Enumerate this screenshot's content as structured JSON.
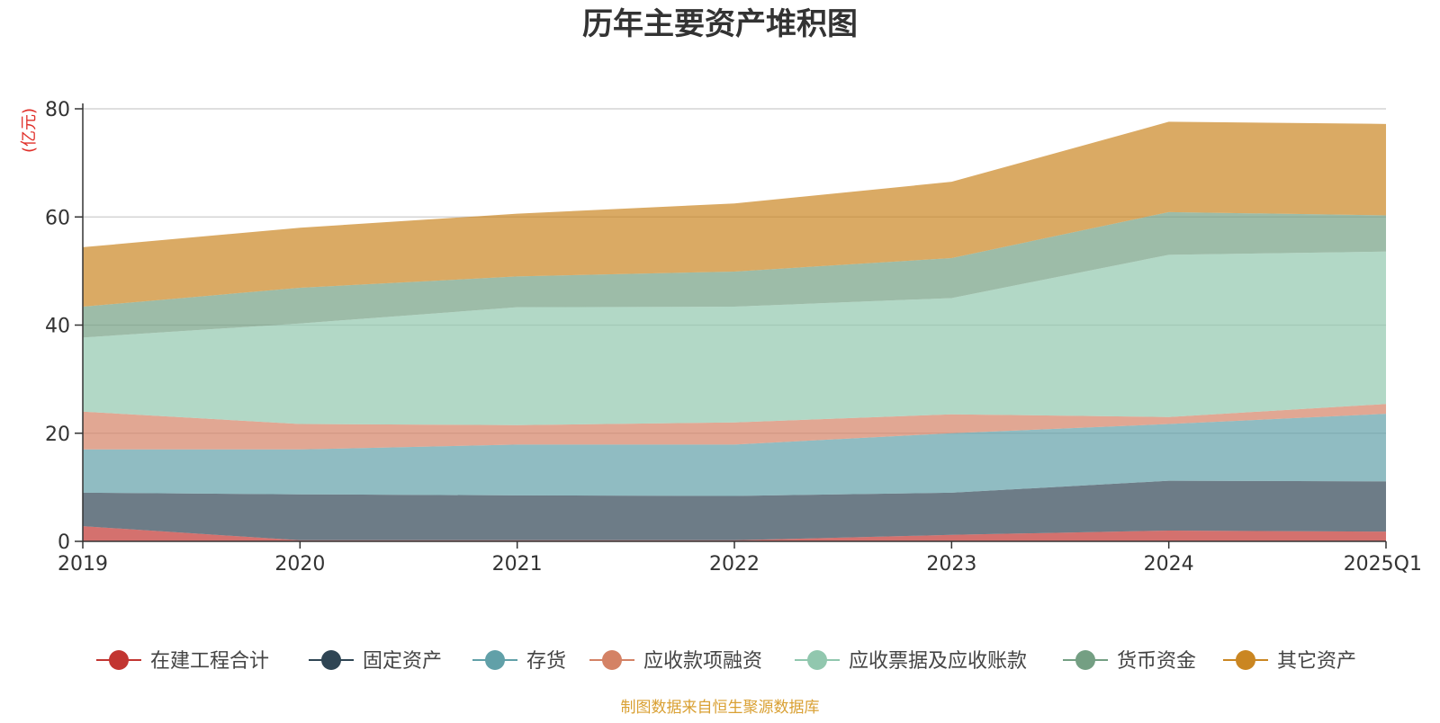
{
  "chart_data": {
    "type": "area",
    "stacked": true,
    "title": "历年主要资产堆积图",
    "ylabel": "(亿元)",
    "ylim": [
      0,
      80
    ],
    "yticks": [
      0,
      20,
      40,
      60,
      80
    ],
    "categories": [
      "2019",
      "2020",
      "2021",
      "2022",
      "2023",
      "2024",
      "2025Q1"
    ],
    "series": [
      {
        "name": "在建工程合计",
        "color": "#c23531",
        "values": [
          2.8,
          0.2,
          0.2,
          0.2,
          1.2,
          2.0,
          1.8
        ]
      },
      {
        "name": "固定资产",
        "color": "#2f4554",
        "values": [
          6.2,
          8.5,
          8.3,
          8.2,
          7.8,
          9.2,
          9.3
        ]
      },
      {
        "name": "存货",
        "color": "#61a0a8",
        "values": [
          8.0,
          8.3,
          9.4,
          9.5,
          11.0,
          10.5,
          12.5
        ]
      },
      {
        "name": "应收款项融资",
        "color": "#d48265",
        "values": [
          7.0,
          4.7,
          3.6,
          4.1,
          3.5,
          1.3,
          1.8
        ]
      },
      {
        "name": "应收票据及应收账款",
        "color": "#91c7ae",
        "values": [
          13.7,
          18.6,
          21.8,
          21.4,
          21.5,
          30.0,
          28.2
        ]
      },
      {
        "name": "货币资金",
        "color": "#749f83",
        "values": [
          5.7,
          6.6,
          5.7,
          6.5,
          7.4,
          7.9,
          6.7
        ]
      },
      {
        "name": "其它资产",
        "color": "#ca8622",
        "values": [
          11.0,
          11.1,
          11.6,
          12.6,
          14.1,
          16.7,
          16.9
        ]
      }
    ],
    "legend_position": "bottom",
    "source_note": "制图数据来自恒生聚源数据库"
  }
}
